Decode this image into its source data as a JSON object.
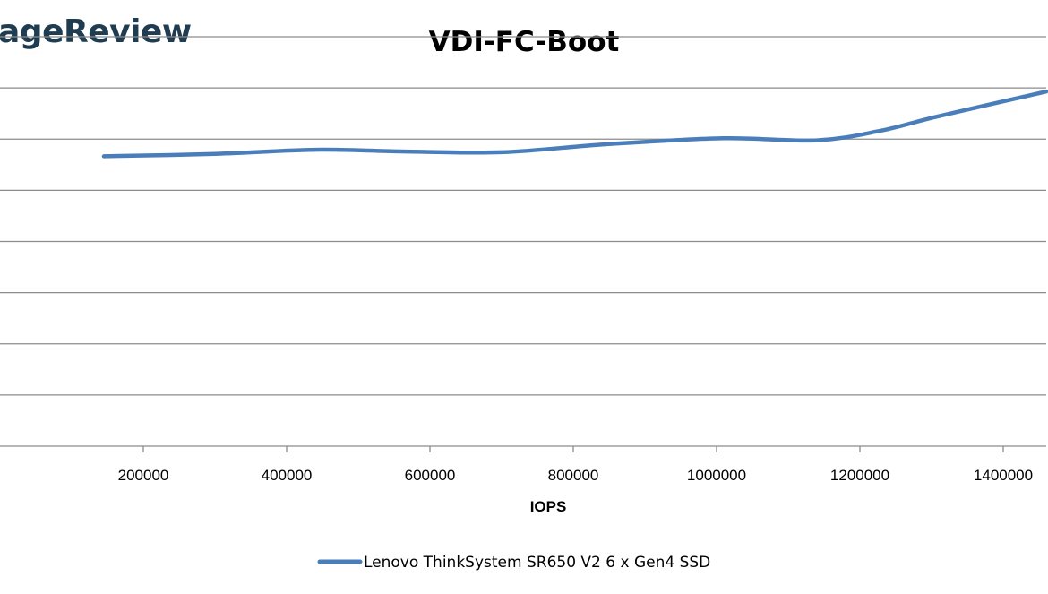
{
  "watermark": {
    "text": "ageReview"
  },
  "colors": {
    "series": "#4a7ebb",
    "grid": "#8c8c8c"
  },
  "chart_data": {
    "type": "line",
    "title": "VDI-FC-Boot",
    "xlabel": "IOPS",
    "ylabel": "",
    "xlim": [
      0,
      1460000
    ],
    "x_ticks": [
      200000,
      400000,
      600000,
      800000,
      1000000,
      1200000,
      1400000
    ],
    "x_tick_labels": [
      "200000",
      "400000",
      "600000",
      "800000",
      "1000000",
      "1200000",
      "1400000"
    ],
    "grid": true,
    "legend": "bottom",
    "series": [
      {
        "name": "Lenovo ThinkSystem SR650 V2 6 x Gen4 SSD",
        "color": "#4a7ebb",
        "x": [
          145000,
          300000,
          440000,
          560000,
          700000,
          850000,
          1010000,
          1140000,
          1230000,
          1310000,
          1460000
        ],
        "y": [
          0.708,
          0.714,
          0.724,
          0.72,
          0.718,
          0.738,
          0.752,
          0.747,
          0.771,
          0.806,
          0.866
        ]
      }
    ]
  }
}
